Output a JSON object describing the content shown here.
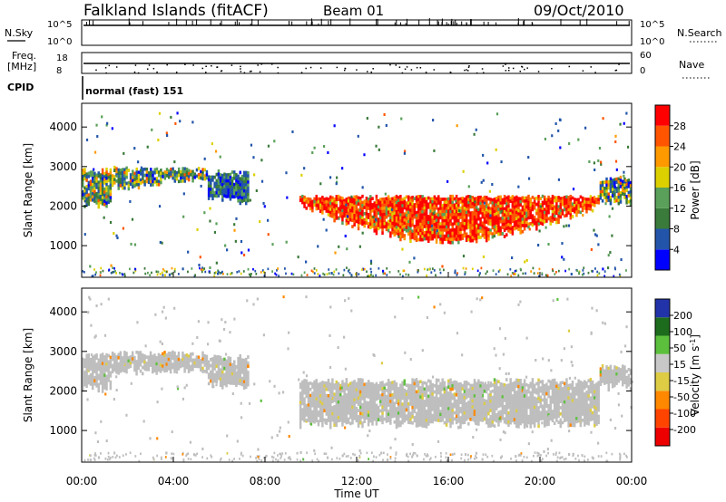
{
  "header": {
    "station": "Falkland Islands (fitACF)",
    "beam": "Beam 01",
    "date": "09/Oct/2010"
  },
  "strip_panels": {
    "nsky": {
      "label": "N.Sky",
      "ticks": [
        "10^5",
        "10^0"
      ]
    },
    "nsearch": {
      "label": "N.Search",
      "ticks": [
        "10^5",
        "10^0"
      ]
    },
    "freq": {
      "label_line1": "Freq.",
      "label_line2": "[MHz]",
      "ticks": [
        "18",
        "8"
      ]
    },
    "nave": {
      "label": "Nave",
      "ticks": [
        "60",
        "0"
      ]
    },
    "cpid": {
      "label": "CPID",
      "mode": "normal (fast) 151"
    }
  },
  "x_axis": {
    "label": "Time UT",
    "ticks": [
      "00:00",
      "04:00",
      "08:00",
      "12:00",
      "16:00",
      "20:00",
      "00:00"
    ]
  },
  "colors": {
    "power_scale": [
      "#0000ff",
      "#2255aa",
      "#3a7a3a",
      "#5aa05a",
      "#ddd000",
      "#ff9900",
      "#ff5500",
      "#ff0000"
    ],
    "velocity_scale": [
      "#2233aa",
      "#1d6b1d",
      "#5cc03c",
      "#c8c8c8",
      "#ddcc44",
      "#ff8800",
      "#ff4400",
      "#ee0000"
    ],
    "ground_scatter": "#bebebe"
  },
  "chart_data": [
    {
      "type": "heatmap",
      "title": "",
      "xlabel": "Time UT",
      "ylabel": "Slant Range [km]",
      "xlim": [
        "00:00",
        "24:00"
      ],
      "ylim": [
        200,
        4600
      ],
      "y_ticks": [
        "1000",
        "2000",
        "3000",
        "4000"
      ],
      "colorbar": {
        "label": "Power [dB]",
        "ticks": [
          "4",
          "8",
          "12",
          "16",
          "20",
          "24",
          "28"
        ],
        "range": [
          0,
          30
        ]
      },
      "bands": [
        {
          "t0": 0.0,
          "t1": 1.3,
          "r0": 2100,
          "r1": 2900,
          "level": "mixed-low"
        },
        {
          "t0": 1.3,
          "t1": 3.5,
          "r0": 2550,
          "r1": 2950,
          "level": "mixed-low"
        },
        {
          "t0": 3.5,
          "t1": 5.5,
          "r0": 2700,
          "r1": 2950,
          "level": "mixed-low"
        },
        {
          "t0": 5.5,
          "t1": 7.3,
          "r0": 2200,
          "r1": 2850,
          "level": "low"
        },
        {
          "t0": 9.5,
          "t1": 22.6,
          "r0": 1200,
          "r1": 2250,
          "level": "high"
        },
        {
          "t0": 22.6,
          "t1": 24.0,
          "r0": 2150,
          "r1": 2700,
          "level": "mixed-low"
        }
      ]
    },
    {
      "type": "heatmap",
      "title": "",
      "xlabel": "Time UT",
      "ylabel": "Slant Range [km]",
      "xlim": [
        "00:00",
        "24:00"
      ],
      "ylim": [
        200,
        4600
      ],
      "y_ticks": [
        "1000",
        "2000",
        "3000",
        "4000"
      ],
      "colorbar": {
        "label": "Velocity [m s^-1]",
        "ticks": [
          "200",
          "100",
          "50",
          "15",
          "-15",
          "-50",
          "-100",
          "-200"
        ],
        "range": [
          -250,
          250
        ]
      },
      "bands": [
        {
          "t0": 0.0,
          "t1": 1.3,
          "r0": 2100,
          "r1": 2900,
          "level": "ground"
        },
        {
          "t0": 1.3,
          "t1": 5.5,
          "r0": 2550,
          "r1": 2950,
          "level": "ground"
        },
        {
          "t0": 5.5,
          "t1": 7.3,
          "r0": 2200,
          "r1": 2850,
          "level": "ground"
        },
        {
          "t0": 9.5,
          "t1": 22.6,
          "r0": 1200,
          "r1": 2250,
          "level": "ground"
        },
        {
          "t0": 22.6,
          "t1": 24.0,
          "r0": 2150,
          "r1": 2600,
          "level": "ground"
        }
      ]
    }
  ]
}
